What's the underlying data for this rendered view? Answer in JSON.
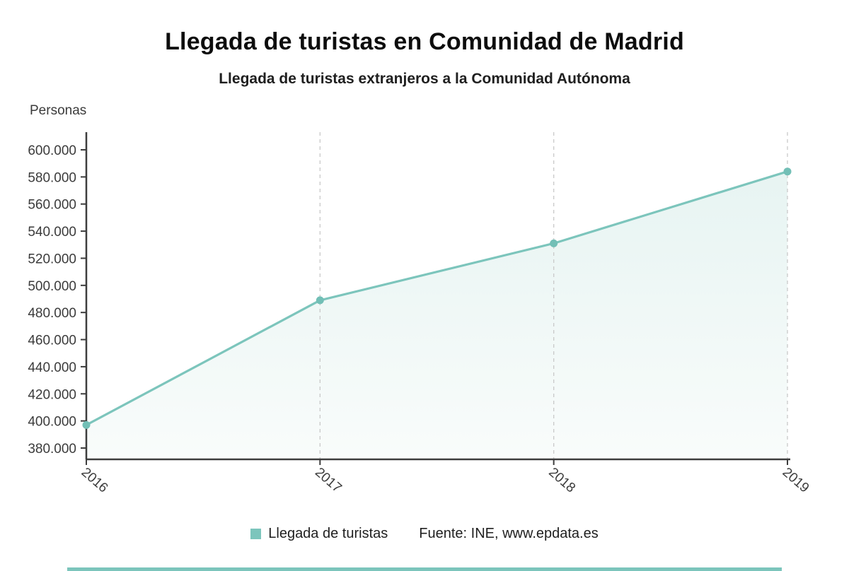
{
  "header": {
    "title": "Llegada de turistas en Comunidad de Madrid",
    "subtitle": "Llegada de turistas extranjeros a la Comunidad Autónoma"
  },
  "axis_unit_label": "Personas",
  "legend": {
    "series_label": "Llegada de turistas",
    "source": "Fuente: INE, www.epdata.es"
  },
  "colors": {
    "line": "#7cc5bc",
    "point": "#72bfb6",
    "area_top": "#e7f4f2",
    "area_bottom": "#f9fcfb",
    "grid": "#c9c9c9",
    "axis": "#3d3d3d",
    "tick_text": "#3b3b3b",
    "footer_bar": "#7cc5bc"
  },
  "chart_data": {
    "type": "line",
    "title": "Llegada de turistas en Comunidad de Madrid",
    "subtitle": "Llegada de turistas extranjeros a la Comunidad Autónoma",
    "ylabel": "Personas",
    "xlabel": "",
    "x": [
      "2016",
      "2017",
      "2018",
      "2019"
    ],
    "series": [
      {
        "name": "Llegada de turistas",
        "values": [
          397000,
          489000,
          531000,
          584000
        ]
      }
    ],
    "ylim": [
      380000,
      600000
    ],
    "ytick_values": [
      380000,
      400000,
      420000,
      440000,
      460000,
      480000,
      500000,
      520000,
      540000,
      560000,
      580000,
      600000
    ],
    "ytick_labels": [
      "380.000",
      "400.000",
      "420.000",
      "440.000",
      "460.000",
      "480.000",
      "500.000",
      "520.000",
      "540.000",
      "560.000",
      "580.000",
      "600.000"
    ],
    "grid": "vertical-dashed",
    "area_fill": true,
    "legend_position": "bottom",
    "source": "Fuente: INE, www.epdata.es"
  }
}
